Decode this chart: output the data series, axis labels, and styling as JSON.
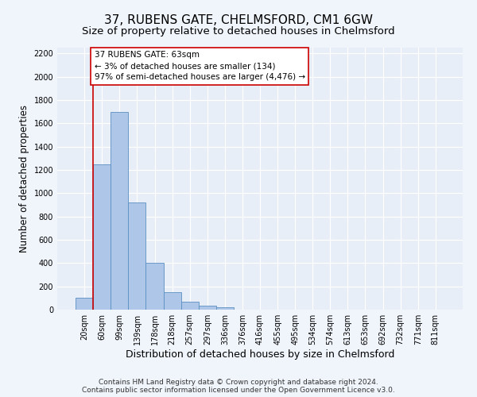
{
  "title": "37, RUBENS GATE, CHELMSFORD, CM1 6GW",
  "subtitle": "Size of property relative to detached houses in Chelmsford",
  "xlabel": "Distribution of detached houses by size in Chelmsford",
  "ylabel": "Number of detached properties",
  "footer_line1": "Contains HM Land Registry data © Crown copyright and database right 2024.",
  "footer_line2": "Contains public sector information licensed under the Open Government Licence v3.0.",
  "bin_labels": [
    "20sqm",
    "60sqm",
    "99sqm",
    "139sqm",
    "178sqm",
    "218sqm",
    "257sqm",
    "297sqm",
    "336sqm",
    "376sqm",
    "416sqm",
    "455sqm",
    "495sqm",
    "534sqm",
    "574sqm",
    "613sqm",
    "653sqm",
    "692sqm",
    "732sqm",
    "771sqm",
    "811sqm"
  ],
  "bar_values": [
    105,
    1250,
    1700,
    920,
    400,
    150,
    65,
    35,
    22,
    0,
    0,
    0,
    0,
    0,
    0,
    0,
    0,
    0,
    0,
    0,
    0
  ],
  "bar_color": "#aec6e8",
  "bar_edge_color": "#5a8fc2",
  "annotation_line1": "37 RUBENS GATE: 63sqm",
  "annotation_line2": "← 3% of detached houses are smaller (134)",
  "annotation_line3": "97% of semi-detached houses are larger (4,476) →",
  "vline_color": "#cc0000",
  "vline_x": 0.5,
  "ylim": [
    0,
    2250
  ],
  "yticks": [
    0,
    200,
    400,
    600,
    800,
    1000,
    1200,
    1400,
    1600,
    1800,
    2000,
    2200
  ],
  "bg_color": "#e8eef7",
  "fig_bg_color": "#f0f4fb",
  "grid_color": "#ffffff",
  "title_fontsize": 11,
  "subtitle_fontsize": 9.5,
  "ylabel_fontsize": 8.5,
  "xlabel_fontsize": 9,
  "tick_fontsize": 7,
  "annotation_fontsize": 7.5,
  "footer_fontsize": 6.5
}
